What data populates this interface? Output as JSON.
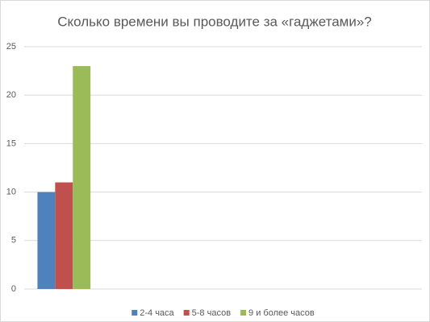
{
  "chart_data": {
    "type": "bar",
    "title": "Сколько времени вы проводите за «гаджетами»?",
    "categories": [
      null,
      null,
      null,
      null,
      null
    ],
    "series": [
      {
        "name": "2-4 часа",
        "color": "#4f81bd",
        "values": [
          10,
          null,
          null,
          null,
          null
        ]
      },
      {
        "name": "5-8 часов",
        "color": "#c0504d",
        "values": [
          11,
          null,
          null,
          null,
          null
        ]
      },
      {
        "name": "9 и более часов",
        "color": "#9bbb59",
        "values": [
          23,
          null,
          null,
          null,
          null
        ]
      }
    ],
    "ylim": [
      0,
      25
    ],
    "yticks": [
      0,
      5,
      10,
      15,
      20,
      25
    ],
    "grid": true,
    "legend": "bottom"
  }
}
